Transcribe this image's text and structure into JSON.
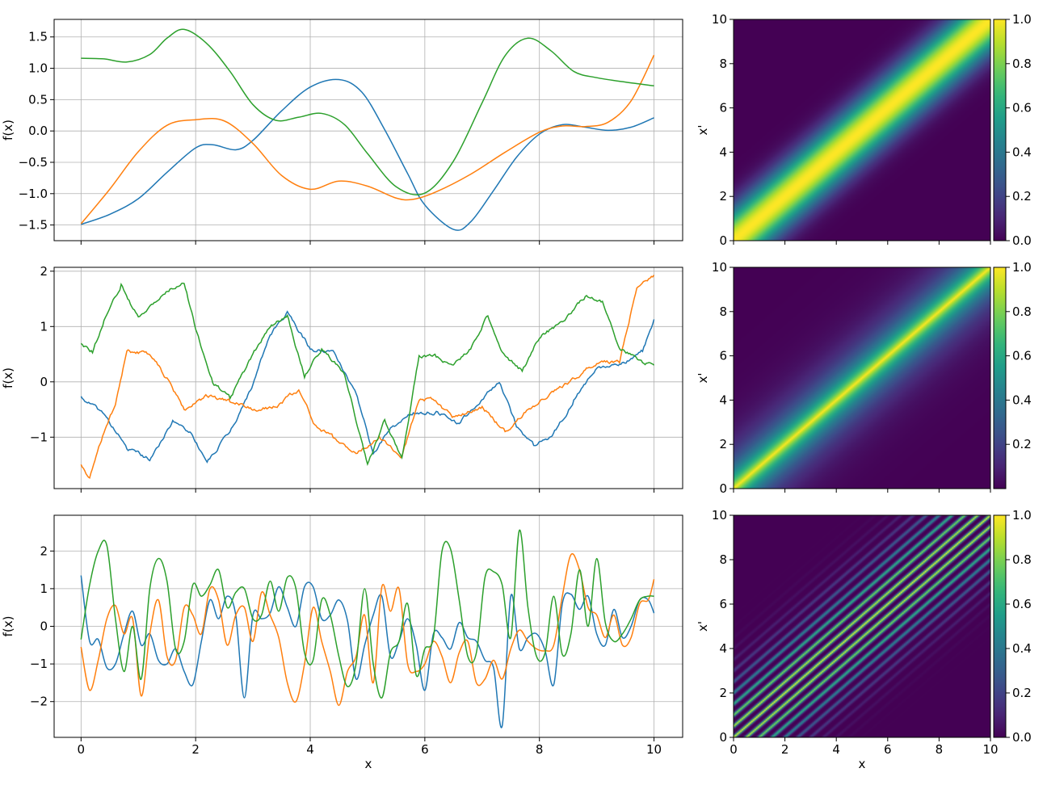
{
  "colors": {
    "series": [
      "#1f77b4",
      "#ff7f0e",
      "#2ca02c"
    ],
    "grid": "#b0b0b0",
    "axis": "#000000"
  },
  "colormap": "viridis",
  "chart_data": [
    {
      "type": "line",
      "xlabel": "",
      "ylabel": "f(x)",
      "xlim": [
        -0.47,
        10.5
      ],
      "ylim": [
        -1.75,
        1.78
      ],
      "xticks": [
        0,
        2,
        4,
        6,
        8,
        10
      ],
      "yticks": [
        -1.5,
        -1.0,
        -0.5,
        0.0,
        0.5,
        1.0,
        1.5
      ],
      "ytick_labels": [
        "−1.5",
        "−1.0",
        "−0.5",
        "0.0",
        "0.5",
        "1.0",
        "1.5"
      ],
      "grid": true,
      "style": "smooth",
      "series": [
        {
          "x": [
            0,
            0.5,
            1,
            1.5,
            2,
            2.3,
            2.7,
            3,
            3.5,
            4,
            4.5,
            4.9,
            5.3,
            5.7,
            6,
            6.5,
            6.8,
            7.2,
            7.6,
            8,
            8.4,
            8.8,
            9.2,
            9.6,
            10
          ],
          "y": [
            -1.49,
            -1.33,
            -1.08,
            -0.66,
            -0.27,
            -0.22,
            -0.3,
            -0.15,
            0.32,
            0.7,
            0.82,
            0.62,
            0.02,
            -0.68,
            -1.18,
            -1.57,
            -1.45,
            -0.95,
            -0.42,
            -0.05,
            0.1,
            0.06,
            0.01,
            0.06,
            0.21
          ]
        },
        {
          "x": [
            0,
            0.5,
            1,
            1.5,
            2,
            2.5,
            3,
            3.5,
            4,
            4.5,
            5,
            5.5,
            5.8,
            6.2,
            6.8,
            7.4,
            8,
            8.4,
            8.8,
            9.2,
            9.6,
            10
          ],
          "y": [
            -1.48,
            -0.93,
            -0.33,
            0.09,
            0.18,
            0.16,
            -0.2,
            -0.71,
            -0.93,
            -0.8,
            -0.88,
            -1.07,
            -1.09,
            -0.97,
            -0.69,
            -0.34,
            -0.02,
            0.08,
            0.07,
            0.14,
            0.48,
            1.21
          ]
        },
        {
          "x": [
            0,
            0.4,
            0.8,
            1.2,
            1.5,
            1.8,
            2.2,
            2.6,
            3,
            3.4,
            3.8,
            4.2,
            4.6,
            5,
            5.5,
            6,
            6.5,
            7,
            7.4,
            7.8,
            8.2,
            8.6,
            9,
            9.5,
            10
          ],
          "y": [
            1.16,
            1.15,
            1.1,
            1.22,
            1.48,
            1.62,
            1.39,
            0.95,
            0.42,
            0.17,
            0.22,
            0.28,
            0.1,
            -0.36,
            -0.89,
            -0.99,
            -0.48,
            0.45,
            1.2,
            1.48,
            1.28,
            0.95,
            0.85,
            0.78,
            0.72
          ]
        }
      ]
    },
    {
      "type": "line",
      "xlabel": "",
      "ylabel": "f(x)",
      "xlim": [
        -0.47,
        10.5
      ],
      "ylim": [
        -1.93,
        2.07
      ],
      "xticks": [
        0,
        2,
        4,
        6,
        8,
        10
      ],
      "yticks": [
        -1,
        0,
        1,
        2
      ],
      "ytick_labels": [
        "−1",
        "0",
        "1",
        "2"
      ],
      "grid": true,
      "style": "rough",
      "series": [
        {
          "x": [
            0,
            0.4,
            0.8,
            1.2,
            1.6,
            1.9,
            2.2,
            2.6,
            3,
            3.3,
            3.6,
            4,
            4.4,
            4.8,
            5.1,
            5.4,
            5.8,
            6.2,
            6.6,
            7,
            7.3,
            7.6,
            7.9,
            8.2,
            8.6,
            9,
            9.4,
            9.8,
            10
          ],
          "y": [
            -0.28,
            -0.58,
            -1.2,
            -1.4,
            -0.72,
            -0.9,
            -1.45,
            -0.9,
            -0.05,
            0.85,
            1.25,
            0.6,
            0.55,
            -0.2,
            -1.3,
            -0.85,
            -0.55,
            -0.55,
            -0.75,
            -0.3,
            0.0,
            -0.8,
            -1.15,
            -1.0,
            -0.35,
            0.25,
            0.3,
            0.55,
            1.13
          ]
        },
        {
          "x": [
            0,
            0.15,
            0.4,
            0.6,
            0.8,
            1.2,
            1.5,
            1.8,
            2.2,
            2.6,
            3,
            3.4,
            3.8,
            4.1,
            4.4,
            4.8,
            5.2,
            5.6,
            5.9,
            6.1,
            6.5,
            7,
            7.4,
            7.8,
            8.2,
            8.6,
            9,
            9.4,
            9.7,
            10
          ],
          "y": [
            -1.5,
            -1.75,
            -0.9,
            -0.4,
            0.55,
            0.5,
            0.05,
            -0.5,
            -0.25,
            -0.35,
            -0.5,
            -0.45,
            -0.15,
            -0.8,
            -1.0,
            -1.3,
            -1.0,
            -1.35,
            -0.35,
            -0.3,
            -0.65,
            -0.45,
            -0.9,
            -0.5,
            -0.2,
            0.05,
            0.35,
            0.35,
            1.7,
            1.93
          ]
        },
        {
          "x": [
            0,
            0.2,
            0.4,
            0.7,
            1,
            1.3,
            1.6,
            1.8,
            2,
            2.3,
            2.6,
            3,
            3.3,
            3.6,
            3.9,
            4.2,
            4.6,
            5,
            5.3,
            5.6,
            5.9,
            6.2,
            6.5,
            6.8,
            7.1,
            7.4,
            7.7,
            8,
            8.4,
            8.8,
            9.1,
            9.4,
            9.8,
            10
          ],
          "y": [
            0.7,
            0.55,
            1.1,
            1.75,
            1.15,
            1.45,
            1.7,
            1.8,
            0.95,
            0.0,
            -0.3,
            0.5,
            1.0,
            1.2,
            0.1,
            0.6,
            0.15,
            -1.5,
            -0.7,
            -1.35,
            0.45,
            0.45,
            0.3,
            0.6,
            1.2,
            0.45,
            0.2,
            0.8,
            1.1,
            1.55,
            1.45,
            0.6,
            0.35,
            0.3
          ]
        }
      ]
    },
    {
      "type": "line",
      "xlabel": "x",
      "ylabel": "f(x)",
      "xlim": [
        -0.47,
        10.5
      ],
      "ylim": [
        -2.95,
        2.95
      ],
      "xticks": [
        0,
        2,
        4,
        6,
        8,
        10
      ],
      "yticks": [
        -2,
        -1,
        0,
        1,
        2
      ],
      "ytick_labels": [
        "−2",
        "−1",
        "0",
        "1",
        "2"
      ],
      "grid": true,
      "style": "smooth",
      "series": [
        {
          "x": [
            0,
            0.15,
            0.3,
            0.45,
            0.6,
            0.75,
            0.9,
            1.05,
            1.2,
            1.35,
            1.5,
            1.65,
            1.8,
            1.95,
            2.1,
            2.25,
            2.4,
            2.55,
            2.7,
            2.85,
            3.0,
            3.15,
            3.3,
            3.45,
            3.6,
            3.75,
            3.9,
            4.05,
            4.2,
            4.35,
            4.5,
            4.65,
            4.8,
            4.95,
            5.1,
            5.25,
            5.4,
            5.55,
            5.7,
            5.85,
            6.0,
            6.15,
            6.3,
            6.45,
            6.6,
            6.75,
            6.9,
            7.05,
            7.2,
            7.35,
            7.5,
            7.65,
            7.8,
            7.95,
            8.1,
            8.25,
            8.4,
            8.55,
            8.7,
            8.85,
            9.0,
            9.15,
            9.3,
            9.45,
            9.6,
            9.75,
            9.9,
            10.0
          ],
          "y": [
            1.35,
            -0.4,
            -0.35,
            -1.1,
            -1.0,
            -0.2,
            0.4,
            -0.5,
            -0.2,
            -0.9,
            -1.0,
            -0.6,
            -1.2,
            -1.55,
            -0.4,
            0.7,
            0.2,
            0.8,
            0.3,
            -1.9,
            0.3,
            0.2,
            0.35,
            1.05,
            0.5,
            0.0,
            1.05,
            1.05,
            0.2,
            0.3,
            0.7,
            0.15,
            -1.4,
            -0.5,
            0.3,
            0.8,
            -0.8,
            -0.4,
            0.2,
            -0.5,
            -1.7,
            -0.2,
            -0.3,
            -0.6,
            0.1,
            -0.3,
            -0.4,
            -0.9,
            -1.1,
            -2.65,
            0.8,
            -0.6,
            -0.3,
            -0.2,
            -0.65,
            -1.55,
            0.6,
            0.85,
            0.45,
            0.8,
            -0.2,
            -0.5,
            0.45,
            -0.3,
            0.0,
            0.7,
            0.7,
            0.35
          ]
        },
        {
          "x": [
            0,
            0.15,
            0.3,
            0.45,
            0.6,
            0.75,
            0.9,
            1.05,
            1.2,
            1.35,
            1.5,
            1.65,
            1.8,
            1.95,
            2.1,
            2.25,
            2.4,
            2.55,
            2.7,
            2.85,
            3.0,
            3.15,
            3.3,
            3.45,
            3.6,
            3.75,
            3.9,
            4.05,
            4.2,
            4.35,
            4.5,
            4.65,
            4.8,
            4.95,
            5.1,
            5.25,
            5.4,
            5.55,
            5.7,
            5.85,
            6.0,
            6.15,
            6.3,
            6.45,
            6.6,
            6.75,
            6.9,
            7.05,
            7.2,
            7.35,
            7.5,
            7.65,
            7.8,
            7.95,
            8.1,
            8.25,
            8.4,
            8.55,
            8.7,
            8.85,
            9.0,
            9.15,
            9.3,
            9.45,
            9.6,
            9.75,
            9.9,
            10.0
          ],
          "y": [
            -0.55,
            -1.7,
            -0.9,
            0.2,
            0.55,
            -0.2,
            0.2,
            -1.85,
            -0.2,
            0.7,
            -0.8,
            -0.9,
            0.5,
            0.3,
            -0.2,
            1.0,
            0.7,
            -0.5,
            0.3,
            0.5,
            -0.4,
            0.9,
            0.3,
            -0.3,
            -1.5,
            -2.0,
            -1.0,
            0.5,
            -0.4,
            -1.2,
            -2.1,
            -1.2,
            -0.8,
            0.3,
            -1.5,
            1.05,
            0.4,
            1.0,
            -1.0,
            -1.2,
            -1.0,
            -0.4,
            -0.8,
            -1.5,
            -0.7,
            -0.4,
            -1.5,
            -1.4,
            -0.9,
            -1.4,
            -0.6,
            -0.1,
            -0.4,
            -0.6,
            -0.65,
            -0.5,
            0.8,
            1.9,
            1.5,
            0.5,
            0.3,
            -0.3,
            0.3,
            -0.5,
            -0.3,
            0.6,
            0.7,
            1.25
          ]
        },
        {
          "x": [
            0,
            0.15,
            0.3,
            0.45,
            0.6,
            0.75,
            0.9,
            1.05,
            1.2,
            1.35,
            1.5,
            1.65,
            1.8,
            1.95,
            2.1,
            2.25,
            2.4,
            2.55,
            2.7,
            2.85,
            3.0,
            3.15,
            3.3,
            3.45,
            3.6,
            3.75,
            3.9,
            4.05,
            4.2,
            4.35,
            4.5,
            4.65,
            4.8,
            4.95,
            5.1,
            5.25,
            5.4,
            5.55,
            5.7,
            5.85,
            6.0,
            6.15,
            6.3,
            6.45,
            6.6,
            6.75,
            6.9,
            7.05,
            7.2,
            7.35,
            7.5,
            7.65,
            7.8,
            7.95,
            8.1,
            8.25,
            8.4,
            8.55,
            8.7,
            8.85,
            9.0,
            9.15,
            9.3,
            9.45,
            9.6,
            9.75,
            9.9,
            10.0
          ],
          "y": [
            -0.35,
            1.1,
            2.0,
            2.15,
            0.2,
            -1.2,
            0.0,
            -1.4,
            1.0,
            1.8,
            1.2,
            -0.6,
            -0.4,
            1.1,
            0.8,
            1.1,
            1.5,
            0.5,
            0.9,
            1.0,
            0.2,
            0.3,
            1.2,
            0.4,
            1.3,
            1.0,
            -0.7,
            -0.9,
            0.7,
            0.3,
            -0.8,
            -1.6,
            -1.0,
            1.0,
            -1.0,
            -1.9,
            -0.7,
            -0.4,
            0.6,
            -1.3,
            -0.6,
            -0.3,
            2.0,
            2.05,
            0.7,
            -0.8,
            -0.7,
            1.3,
            1.45,
            1.1,
            -0.3,
            2.55,
            0.5,
            -0.8,
            -0.7,
            0.8,
            -0.75,
            -0.2,
            1.5,
            0.0,
            1.8,
            0.1,
            -0.4,
            -0.2,
            0.2,
            0.7,
            0.8,
            0.8
          ]
        }
      ]
    },
    {
      "type": "heatmap",
      "xlabel": "",
      "ylabel": "x'",
      "xlim": [
        0,
        10
      ],
      "ylim": [
        0,
        10
      ],
      "xticks": [
        0,
        2,
        4,
        6,
        8,
        10
      ],
      "yticks": [
        0,
        2,
        4,
        6,
        8,
        10
      ],
      "kernel": "rbf",
      "lengthscale": 1.0,
      "colorbar": {
        "min": 0.0,
        "max": 1.0,
        "ticks": [
          0.0,
          0.2,
          0.4,
          0.6,
          0.8,
          1.0
        ],
        "tick_labels": [
          "0.0",
          "0.2",
          "0.4",
          "0.6",
          "0.8",
          "1.0"
        ]
      }
    },
    {
      "type": "heatmap",
      "xlabel": "",
      "ylabel": "x'",
      "xlim": [
        0,
        10
      ],
      "ylim": [
        0,
        10
      ],
      "xticks": [
        0,
        2,
        4,
        6,
        8,
        10
      ],
      "yticks": [
        0,
        2,
        4,
        6,
        8,
        10
      ],
      "kernel": "exponential",
      "lengthscale": 1.0,
      "colorbar": {
        "min": 0.0,
        "max": 1.0,
        "ticks": [
          0.2,
          0.4,
          0.6,
          0.8,
          1.0
        ],
        "tick_labels": [
          "0.2",
          "0.4",
          "0.6",
          "0.8",
          "1.0"
        ]
      }
    },
    {
      "type": "heatmap",
      "xlabel": "x",
      "ylabel": "x'",
      "xlim": [
        0,
        10
      ],
      "ylim": [
        0,
        10
      ],
      "xticks": [
        0,
        2,
        4,
        6,
        8,
        10
      ],
      "yticks": [
        0,
        2,
        4,
        6,
        8,
        10
      ],
      "kernel": "spectral-mixture",
      "lengthscale": 1.6,
      "period": 1.0,
      "colorbar": {
        "min": 0.0,
        "max": 1.0,
        "ticks": [
          0.0,
          0.2,
          0.4,
          0.6,
          0.8,
          1.0
        ],
        "tick_labels": [
          "0.0",
          "0.2",
          "0.4",
          "0.6",
          "0.8",
          "1.0"
        ]
      }
    }
  ]
}
